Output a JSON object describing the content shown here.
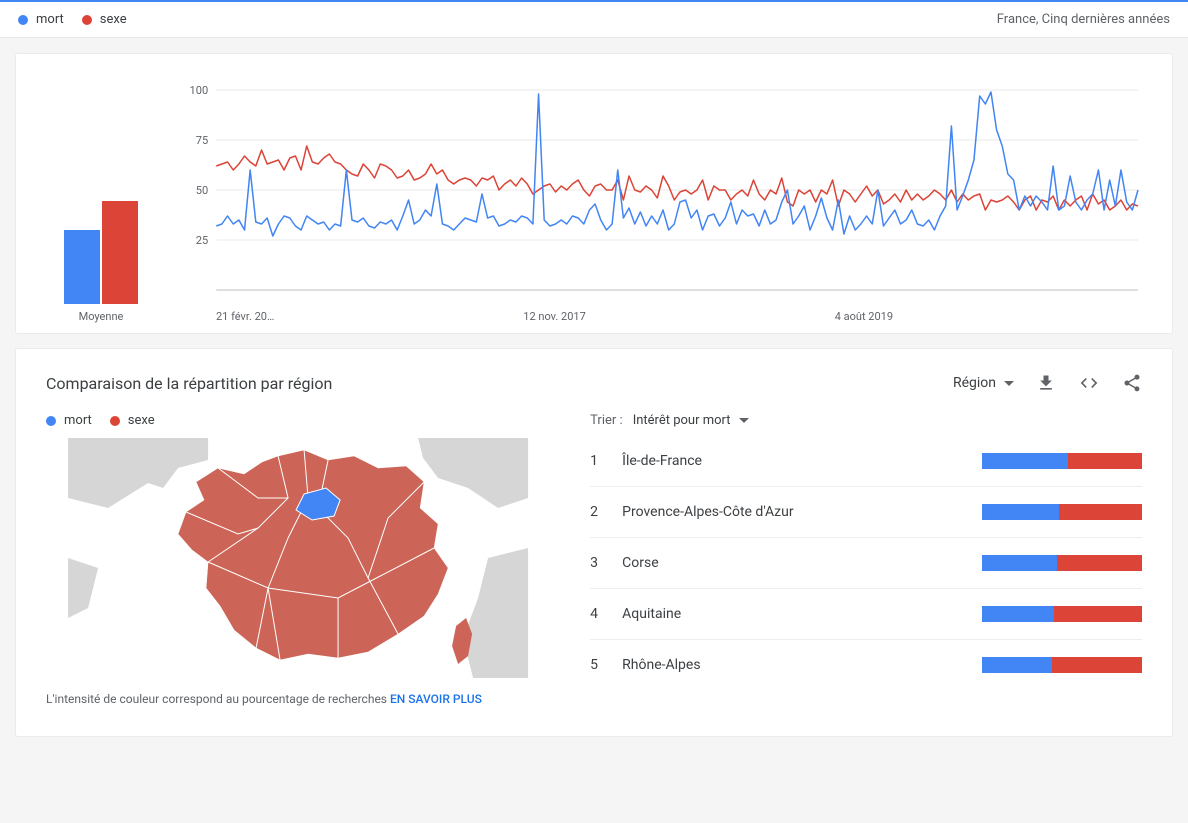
{
  "colors": {
    "series1": "#4285f4",
    "series2": "#db4437",
    "gridline": "#e8e8e8",
    "axis_text": "#5f6368",
    "map_hl": "#4285f4",
    "map_fill": "#cc6557",
    "map_bg": "#d6d6d6"
  },
  "top": {
    "term1": "mort",
    "term2": "sexe",
    "location": "France, Cinq dernières années"
  },
  "timeline": {
    "type": "line",
    "ylim": [
      0,
      100
    ],
    "ytick_step": 25,
    "yticks": [
      25,
      50,
      75,
      100
    ],
    "x_labels": [
      "21 févr. 20…",
      "12 nov. 2017",
      "4 août 2019"
    ],
    "background_color": "#ffffff",
    "grid_color": "#e8e8e8",
    "line_width": 1.5,
    "avg_label": "Moyenne",
    "avg": {
      "s1": 39,
      "s2": 54
    },
    "s1": [
      32,
      33,
      37,
      33,
      35,
      30,
      60,
      34,
      33,
      36,
      27,
      33,
      37,
      36,
      32,
      30,
      37,
      35,
      33,
      34,
      30,
      33,
      32,
      60,
      35,
      34,
      36,
      32,
      31,
      34,
      33,
      35,
      30,
      37,
      45,
      33,
      35,
      40,
      37,
      53,
      33,
      32,
      30,
      33,
      36,
      35,
      34,
      48,
      36,
      37,
      32,
      33,
      35,
      34,
      37,
      36,
      33,
      98,
      35,
      32,
      33,
      35,
      33,
      37,
      36,
      33,
      40,
      43,
      35,
      30,
      33,
      60,
      36,
      41,
      33,
      39,
      32,
      37,
      33,
      40,
      30,
      33,
      44,
      45,
      36,
      40,
      30,
      37,
      38,
      32,
      36,
      44,
      33,
      40,
      37,
      38,
      32,
      40,
      33,
      35,
      44,
      50,
      33,
      37,
      42,
      30,
      37,
      46,
      36,
      30,
      45,
      28,
      37,
      30,
      33,
      37,
      33,
      50,
      32,
      36,
      40,
      33,
      35,
      40,
      33,
      32,
      35,
      30,
      37,
      42,
      82,
      40,
      47,
      55,
      65,
      97,
      93,
      99,
      80,
      72,
      58,
      55,
      40,
      47,
      42,
      47,
      44,
      40,
      62,
      40,
      42,
      57,
      44,
      40,
      45,
      48,
      60,
      40,
      55,
      42,
      60,
      44,
      40,
      50
    ],
    "s2": [
      62,
      63,
      64,
      60,
      63,
      67,
      64,
      62,
      70,
      63,
      64,
      65,
      60,
      66,
      67,
      60,
      72,
      64,
      63,
      66,
      68,
      64,
      63,
      60,
      58,
      57,
      63,
      60,
      56,
      63,
      62,
      60,
      56,
      57,
      60,
      55,
      56,
      58,
      63,
      58,
      60,
      55,
      53,
      55,
      56,
      55,
      52,
      56,
      55,
      57,
      50,
      53,
      55,
      52,
      56,
      53,
      48,
      50,
      52,
      53,
      49,
      52,
      50,
      53,
      55,
      50,
      47,
      52,
      53,
      50,
      50,
      55,
      45,
      57,
      50,
      49,
      52,
      50,
      46,
      57,
      52,
      45,
      49,
      50,
      48,
      50,
      55,
      45,
      52,
      50,
      50,
      45,
      48,
      50,
      47,
      55,
      48,
      45,
      50,
      48,
      56,
      44,
      42,
      50,
      48,
      50,
      44,
      50,
      48,
      55,
      42,
      50,
      48,
      44,
      48,
      52,
      47,
      50,
      43,
      45,
      48,
      44,
      50,
      45,
      48,
      45,
      47,
      50,
      48,
      45,
      50,
      44,
      48,
      45,
      47,
      48,
      40,
      45,
      44,
      45,
      47,
      44,
      40,
      45,
      47,
      40,
      45,
      44,
      47,
      40,
      45,
      42,
      45,
      47,
      40,
      48,
      43,
      45,
      40,
      42,
      45,
      40,
      43,
      42
    ]
  },
  "region_section": {
    "title": "Comparaison de la répartition par région",
    "dropdown_label": "Région",
    "sort_label": "Trier :",
    "sort_value": "Intérêt pour mort",
    "map_note_prefix": "L'intensité de couleur correspond au pourcentage de recherches ",
    "map_note_link": "EN SAVOIR PLUS",
    "legend": {
      "t1": "mort",
      "t2": "sexe"
    },
    "rows": [
      {
        "rank": "1",
        "name": "Île-de-France",
        "s1": 54,
        "s2": 46
      },
      {
        "rank": "2",
        "name": "Provence-Alpes-Côte d'Azur",
        "s1": 48,
        "s2": 52
      },
      {
        "rank": "3",
        "name": "Corse",
        "s1": 47,
        "s2": 53
      },
      {
        "rank": "4",
        "name": "Aquitaine",
        "s1": 45,
        "s2": 55
      },
      {
        "rank": "5",
        "name": "Rhône-Alpes",
        "s1": 44,
        "s2": 56
      }
    ]
  }
}
